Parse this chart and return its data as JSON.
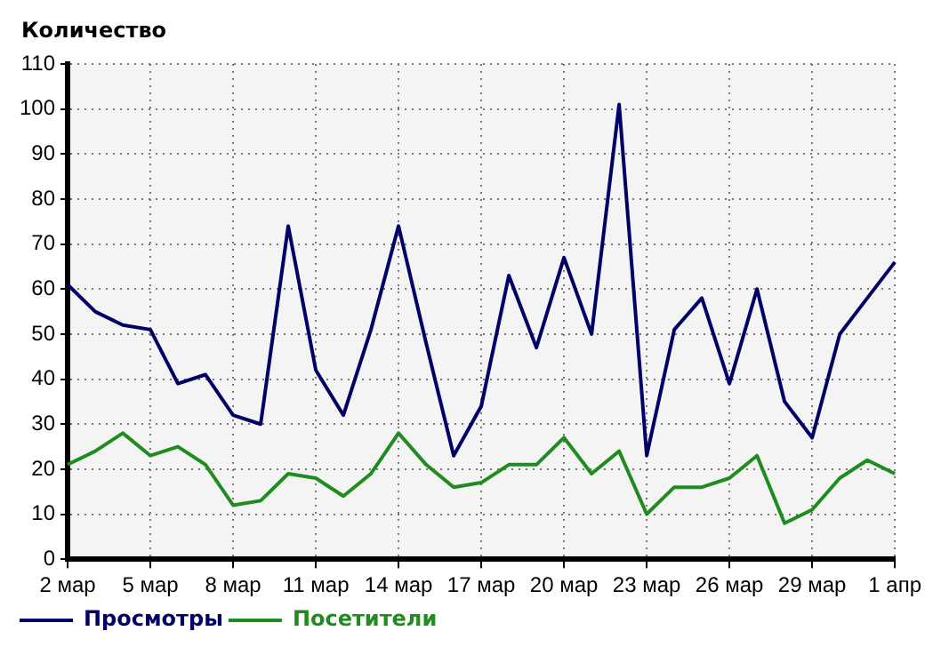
{
  "chart_data": {
    "type": "line",
    "ylabel": "Количество",
    "categories": [
      "2 мар",
      null,
      null,
      "5 мар",
      null,
      null,
      "8 мар",
      null,
      null,
      "11 мар",
      null,
      null,
      "14 мар",
      null,
      null,
      "17 мар",
      null,
      null,
      "20 мар",
      null,
      null,
      "23 мар",
      null,
      null,
      "26 мар",
      null,
      null,
      "29 мар",
      null,
      null,
      "1 апр"
    ],
    "series": [
      {
        "name": "Просмотры",
        "color": "#000066",
        "values": [
          61,
          55,
          52,
          51,
          39,
          41,
          32,
          30,
          74,
          42,
          32,
          51,
          74,
          48,
          23,
          34,
          63,
          47,
          67,
          50,
          101,
          23,
          51,
          58,
          39,
          60,
          35,
          27,
          50,
          58,
          66
        ]
      },
      {
        "name": "Посетители",
        "color": "#1e8c1e",
        "values": [
          21,
          24,
          28,
          23,
          25,
          21,
          12,
          13,
          19,
          18,
          14,
          19,
          28,
          21,
          16,
          17,
          21,
          21,
          27,
          19,
          24,
          10,
          16,
          16,
          18,
          23,
          8,
          11,
          18,
          22,
          19
        ]
      }
    ],
    "ylim": [
      0,
      110
    ],
    "yticks": [
      0,
      10,
      20,
      30,
      40,
      50,
      60,
      70,
      80,
      90,
      100,
      110
    ],
    "grid": true,
    "legend": "bottom left",
    "marker": "none",
    "line_style": "solid"
  }
}
